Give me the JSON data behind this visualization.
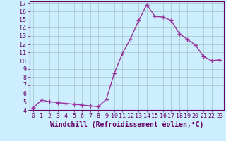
{
  "x": [
    0,
    1,
    2,
    3,
    4,
    5,
    6,
    7,
    8,
    9,
    10,
    11,
    12,
    13,
    14,
    15,
    16,
    17,
    18,
    19,
    20,
    21,
    22,
    23
  ],
  "y": [
    4.3,
    5.2,
    5.0,
    4.9,
    4.8,
    4.7,
    4.6,
    4.5,
    4.4,
    5.3,
    8.5,
    10.9,
    12.7,
    14.9,
    16.8,
    15.4,
    15.3,
    14.9,
    13.3,
    12.6,
    11.9,
    10.5,
    10.0,
    10.1
  ],
  "line_color": "#993399",
  "marker": "+",
  "marker_size": 4,
  "bg_color": "#cceeff",
  "grid_color": "#aacccc",
  "xlabel": "Windchill (Refroidissement éolien,°C)",
  "xlim": [
    -0.5,
    23.5
  ],
  "ylim": [
    4,
    17.2
  ],
  "yticks": [
    4,
    5,
    6,
    7,
    8,
    9,
    10,
    11,
    12,
    13,
    14,
    15,
    16,
    17
  ],
  "xticks": [
    0,
    1,
    2,
    3,
    4,
    5,
    6,
    7,
    8,
    9,
    10,
    11,
    12,
    13,
    14,
    15,
    16,
    17,
    18,
    19,
    20,
    21,
    22,
    23
  ],
  "xlabel_fontsize": 7,
  "tick_fontsize": 6,
  "linewidth": 1.0
}
